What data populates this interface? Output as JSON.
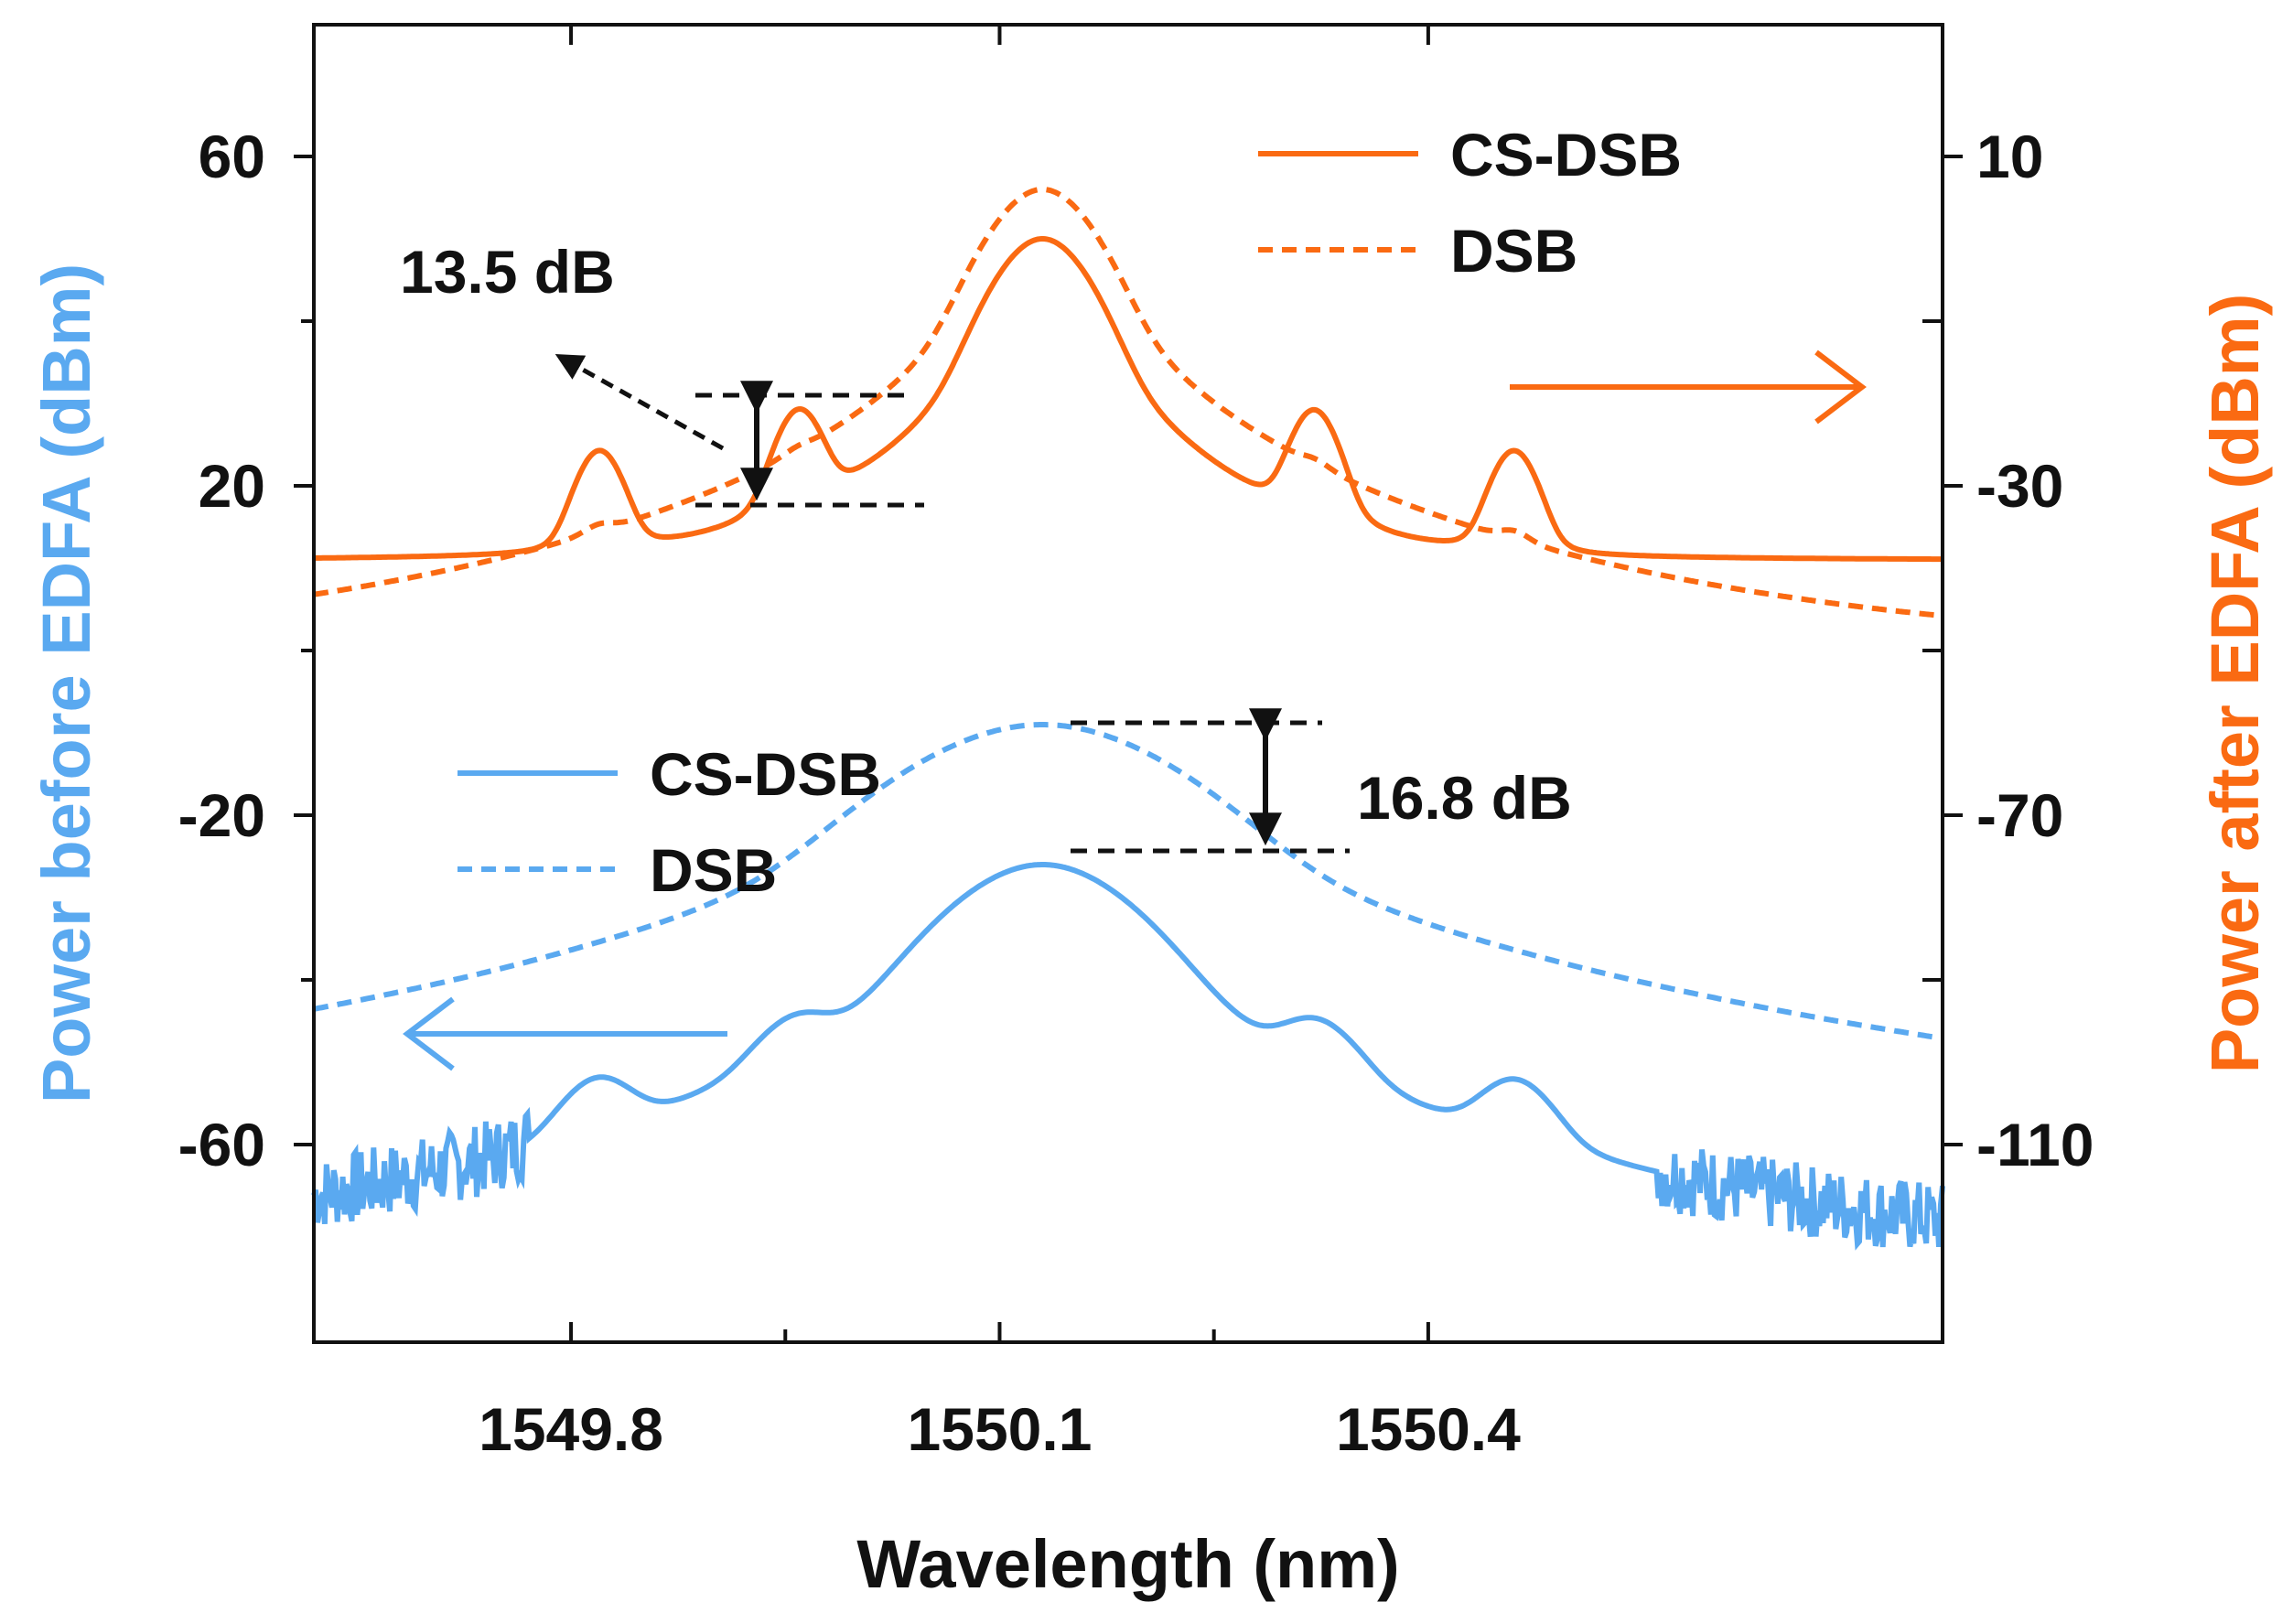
{
  "chart_data": {
    "type": "line",
    "xlabel": "Wavelength (nm)",
    "ylabel_left": "Power before EDFA (dBm)",
    "ylabel_right": "Power after EDFA (dBm)",
    "xlim": [
      1549.62,
      1550.76
    ],
    "ylim_left": [
      -84,
      76
    ],
    "ylim_right": [
      -134,
      26
    ],
    "x_ticks": [
      1549.8,
      1550.1,
      1550.4
    ],
    "x_tick_labels": [
      "1549.8",
      "1550.1",
      "1550.4"
    ],
    "y_left_ticks": [
      60,
      20,
      -20,
      -60
    ],
    "y_left_tick_labels": [
      "60",
      "20",
      "-20",
      "-60"
    ],
    "y_right_ticks": [
      10,
      -30,
      -70,
      -110
    ],
    "y_right_tick_labels": [
      "10",
      "-30",
      "-70",
      "-110"
    ],
    "colors": {
      "before": "#5aa9f0",
      "after": "#fa6a12",
      "axis": "#111111"
    },
    "legend_after": {
      "cs_dsb": "CS-DSB",
      "dsb": "DSB"
    },
    "legend_before": {
      "cs_dsb": "CS-DSB",
      "dsb": "DSB"
    },
    "annotations": {
      "after_diff": "13.5 dB",
      "before_diff": "16.8 dB"
    },
    "series": [
      {
        "name": "CS-DSB",
        "axis": "right",
        "style": "solid",
        "color": "#fa6a12",
        "baseline": -39,
        "peaks": [
          {
            "x": 1549.82,
            "y": -26,
            "w": 0.012
          },
          {
            "x": 1549.96,
            "y": -21,
            "w": 0.012
          },
          {
            "x": 1550.13,
            "y": 0,
            "w": 0.022
          },
          {
            "x": 1550.32,
            "y": -21,
            "w": 0.012
          },
          {
            "x": 1550.46,
            "y": -26,
            "w": 0.012
          }
        ]
      },
      {
        "name": "DSB",
        "axis": "right",
        "style": "dashed",
        "color": "#fa6a12",
        "baseline": -50,
        "peaks": [
          {
            "x": 1549.82,
            "y": -42,
            "w": 0.01
          },
          {
            "x": 1549.96,
            "y": -35,
            "w": 0.01
          },
          {
            "x": 1550.13,
            "y": 6,
            "w": 0.024
          },
          {
            "x": 1550.32,
            "y": -35,
            "w": 0.01
          },
          {
            "x": 1550.46,
            "y": -42,
            "w": 0.01
          }
        ]
      },
      {
        "name": "CS-DSB",
        "axis": "left",
        "style": "solid",
        "color": "#5aa9f0",
        "baseline": -76,
        "peaks": [
          {
            "x": 1549.82,
            "y": -53,
            "w": 0.02
          },
          {
            "x": 1549.96,
            "y": -46,
            "w": 0.022
          },
          {
            "x": 1550.13,
            "y": -26,
            "w": 0.042
          },
          {
            "x": 1550.32,
            "y": -46,
            "w": 0.022
          },
          {
            "x": 1550.46,
            "y": -53,
            "w": 0.02
          }
        ]
      },
      {
        "name": "DSB",
        "axis": "left",
        "style": "dashed",
        "color": "#5aa9f0",
        "baseline": -76,
        "peaks": [
          {
            "x": 1549.82,
            "y": -58,
            "w": 0.022
          },
          {
            "x": 1549.96,
            "y": -51,
            "w": 0.022
          },
          {
            "x": 1550.13,
            "y": -9,
            "w": 0.06
          },
          {
            "x": 1550.32,
            "y": -51,
            "w": 0.022
          },
          {
            "x": 1550.46,
            "y": -58,
            "w": 0.022
          },
          {
            "x": 1550.52,
            "y": -62,
            "w": 0.06
          }
        ]
      }
    ]
  }
}
